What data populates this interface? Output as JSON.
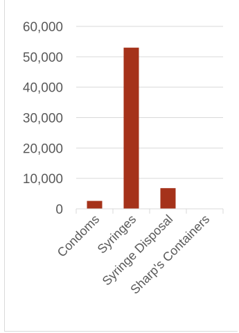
{
  "chart_data": {
    "type": "bar",
    "categories": [
      "Condoms",
      "Syringes",
      "Syringe Disposal",
      "Sharp's Containers"
    ],
    "values": [
      2600,
      53000,
      6800,
      0
    ],
    "ylim": [
      0,
      60000
    ],
    "yticks": [
      0,
      10000,
      20000,
      30000,
      40000,
      50000,
      60000
    ],
    "ytick_labels": [
      "0",
      "10,000",
      "20,000",
      "30,000",
      "40,000",
      "50,000",
      "60,000"
    ],
    "grid": true,
    "legend": "none",
    "bar_color": "#a5321a",
    "grid_color": "#d9d9d9"
  }
}
